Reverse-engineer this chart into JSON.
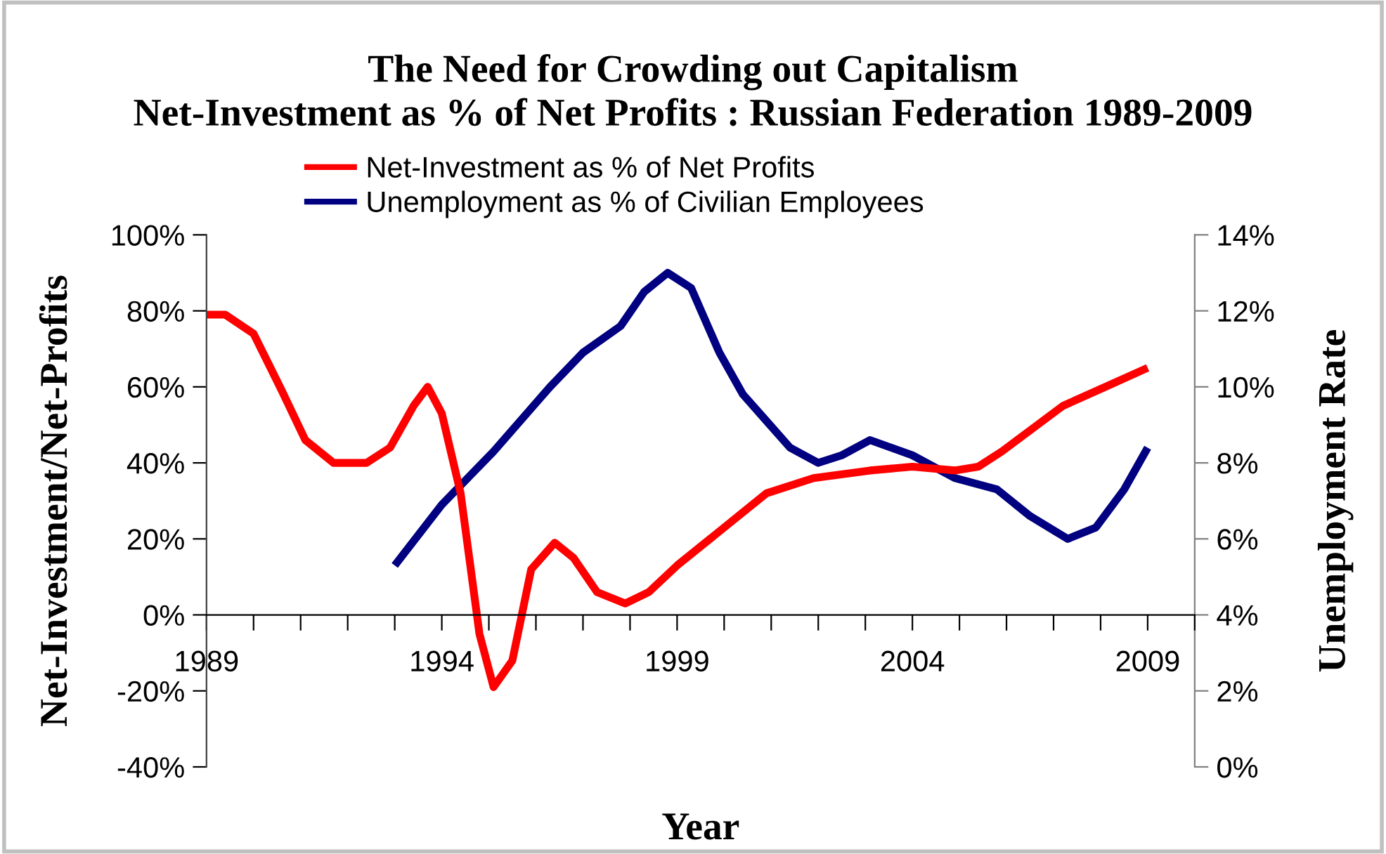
{
  "chart_data": {
    "type": "line",
    "title": "The Need for Crowding out Capitalism\nNet-Investment as % of Net Profits : Russian Federation 1989-2009",
    "xlabel": "Year",
    "ylabel": "Net-Investment/Net-Profits",
    "y2label": "Unemployment Rate",
    "xlim": [
      1989,
      2010
    ],
    "xticks": [
      1989,
      {
        "value": 1990,
        "label": null
      },
      {
        "value": 1991,
        "label": null
      },
      {
        "value": 1992,
        "label": null
      },
      {
        "value": 1993,
        "label": null
      },
      1994,
      {
        "value": 1995,
        "label": null
      },
      {
        "value": 1996,
        "label": null
      },
      {
        "value": 1997,
        "label": null
      },
      {
        "value": 1998,
        "label": null
      },
      1999,
      {
        "value": 2000,
        "label": null
      },
      {
        "value": 2001,
        "label": null
      },
      {
        "value": 2002,
        "label": null
      },
      {
        "value": 2003,
        "label": null
      },
      2004,
      {
        "value": 2005,
        "label": null
      },
      {
        "value": 2006,
        "label": null
      },
      {
        "value": 2007,
        "label": null
      },
      {
        "value": 2008,
        "label": null
      },
      2009,
      {
        "value": 2010,
        "label": null
      }
    ],
    "ylim": [
      -40,
      100
    ],
    "yticks": [
      {
        "value": -40,
        "label": "-40%"
      },
      {
        "value": -20,
        "label": "-20%"
      },
      {
        "value": 0,
        "label": "0%"
      },
      {
        "value": 20,
        "label": "20%"
      },
      {
        "value": 40,
        "label": "40%"
      },
      {
        "value": 60,
        "label": "60%"
      },
      {
        "value": 80,
        "label": "80%"
      },
      {
        "value": 100,
        "label": "100%"
      }
    ],
    "y2lim": [
      0,
      14
    ],
    "y2ticks": [
      {
        "value": 0,
        "label": "0%"
      },
      {
        "value": 2,
        "label": "2%"
      },
      {
        "value": 4,
        "label": "4%"
      },
      {
        "value": 6,
        "label": "6%"
      },
      {
        "value": 8,
        "label": "8%"
      },
      {
        "value": 10,
        "label": "10%"
      },
      {
        "value": 12,
        "label": "12%"
      },
      {
        "value": 14,
        "label": "14%"
      }
    ],
    "grid": false,
    "legend": "top",
    "marker": "none",
    "line_style": "solid",
    "series": [
      {
        "name": "Net-Investment as % of Net Profits",
        "color": "#ff0000",
        "x": [
          1989,
          1989.4,
          1990,
          1990.6,
          1991.1,
          1991.7,
          1992.4,
          1992.9,
          1993.4,
          1993.7,
          1994.0,
          1994.4,
          1994.8,
          1995.1,
          1995.5,
          1995.9,
          1996.4,
          1996.8,
          1997.3,
          1997.9,
          1998.4,
          1999.0,
          1999.9,
          2000.9,
          2001.9,
          2003.1,
          2004.0,
          2004.9,
          2005.4,
          2005.9,
          2007.2,
          2008.1,
          2009
        ],
        "values": [
          79,
          79,
          74,
          59,
          46,
          40,
          40,
          44,
          55,
          60,
          53,
          32,
          -5,
          -19,
          -12,
          12,
          19,
          15,
          6,
          3,
          6,
          13,
          22,
          32,
          36,
          38,
          39,
          38,
          39,
          43,
          55,
          60,
          65
        ]
      },
      {
        "name": "Unemployment as % of Civilian Employees",
        "color": "#000080",
        "axis": "y2",
        "x": [
          1993,
          1994.0,
          1995.1,
          1996.3,
          1997.0,
          1997.8,
          1998.3,
          1998.8,
          1999.3,
          1999.9,
          2000.4,
          2000.9,
          2001.4,
          2002.0,
          2002.5,
          2003.1,
          2004.0,
          2004.9,
          2005.8,
          2006.5,
          2007.3,
          2007.9,
          2008.5,
          2009
        ],
        "values": [
          5.3,
          6.9,
          8.3,
          10.0,
          10.9,
          11.6,
          12.5,
          13.0,
          12.6,
          10.9,
          9.8,
          9.1,
          8.4,
          8.0,
          8.2,
          8.6,
          8.2,
          7.6,
          7.3,
          6.6,
          6.0,
          6.3,
          7.3,
          8.4
        ]
      }
    ]
  }
}
